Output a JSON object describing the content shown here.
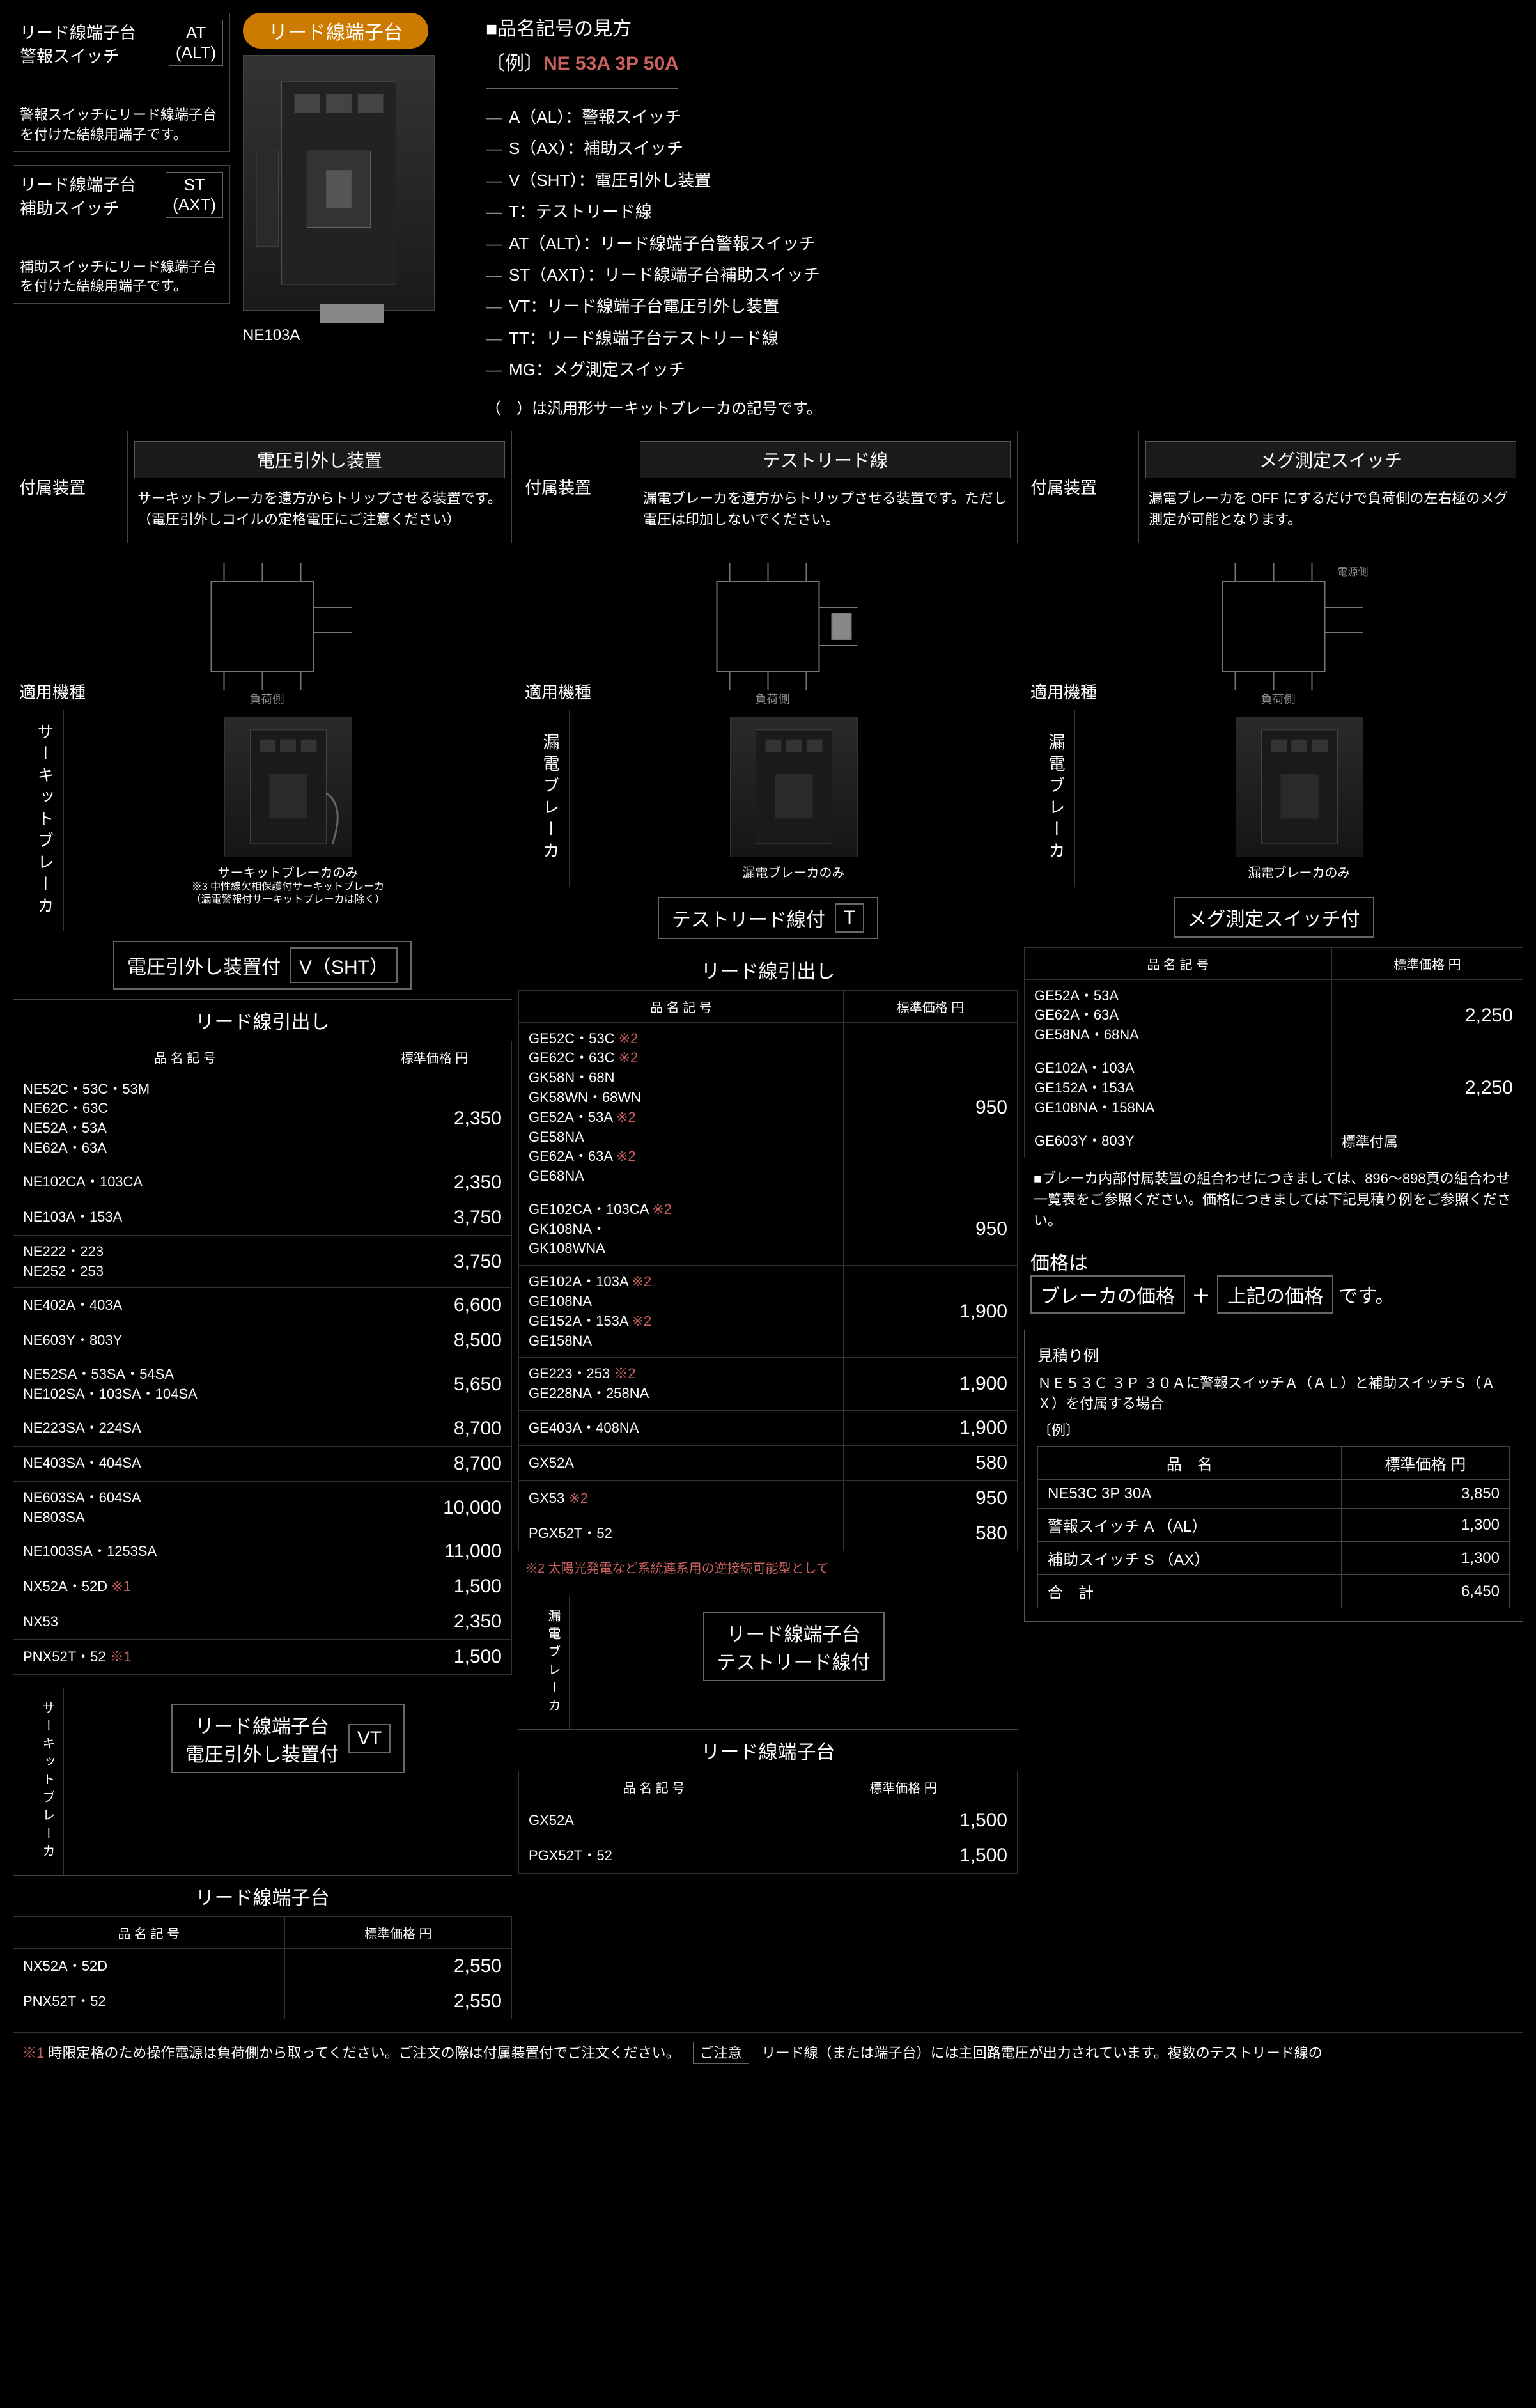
{
  "top": {
    "box1": {
      "title": "リード線端子台\n警報スイッチ",
      "tag": "AT\n(ALT)",
      "desc": "警報スイッチにリード線端子台を付けた結線用端子です。"
    },
    "box2": {
      "title": "リード線端子台\n補助スイッチ",
      "tag": "ST\n(AXT)",
      "desc": "補助スイッチにリード線端子台を付けた結線用端子です。"
    },
    "pill": "リード線端子台",
    "photo_label": "NE103A",
    "spec_title": "■品名記号の見方",
    "spec_example_prefix": "〔例〕",
    "spec_example": "NE 53A 3P 50A",
    "legend": [
      "A（AL）：警報スイッチ",
      "S（AX）：補助スイッチ",
      "V（SHT）：電圧引外し装置",
      "T：テストリード線",
      "AT（ALT）：リード線端子台警報スイッチ",
      "ST（AXT）：リード線端子台補助スイッチ",
      "VT：リード線端子台電圧引外し装置",
      "TT：リード線端子台テストリード線",
      "MG：メグ測定スイッチ"
    ],
    "legend_note": "（　）は汎用形サーキットブレーカの記号です。"
  },
  "cols": [
    {
      "attach_label": "付属装置",
      "title": "電圧引外し装置",
      "desc": "サーキットブレーカを遠方からトリップさせる装置です。\n（電圧引外しコイルの定格電圧にご注意ください）",
      "applied": "適用機種",
      "vert": "サーキットブレーカ",
      "caption": "サーキットブレーカのみ",
      "cap_note": "※3 中性線欠相保護付サーキットブレーカ\n（漏電警報付サーキットブレーカは除く）",
      "device_label": "電圧引外し装置付",
      "device_code": "V（SHT）",
      "table_title": "リード線引出し",
      "th_model": "品 名 記 号",
      "th_price": "標準価格 円",
      "rows": [
        {
          "m": "NE52C・53C・53M\nNE62C・63C\nNE52A・53A\nNE62A・63A",
          "p": "2,350"
        },
        {
          "m": "NE102CA・103CA",
          "p": "2,350"
        },
        {
          "m": "NE103A・153A",
          "p": "3,750"
        },
        {
          "m": "NE222・223\nNE252・253",
          "p": "3,750"
        },
        {
          "m": "NE402A・403A",
          "p": "6,600"
        },
        {
          "m": "NE603Y・803Y",
          "p": "8,500"
        },
        {
          "m": "NE52SA・53SA・54SA\nNE102SA・103SA・104SA",
          "p": "5,650"
        },
        {
          "m": "NE223SA・224SA",
          "p": "8,700"
        },
        {
          "m": "NE403SA・404SA",
          "p": "8,700"
        },
        {
          "m": "NE603SA・604SA\nNE803SA",
          "p": "10,000"
        },
        {
          "m": "NE1003SA・1253SA",
          "p": "11,000"
        },
        {
          "m": "NX52A・52D ※1",
          "p": "1,500",
          "red": true
        },
        {
          "m": "NX53",
          "p": "2,350"
        },
        {
          "m": "PNX52T・52 ※1",
          "p": "1,500",
          "red": true
        }
      ],
      "sub_vert": "サーキットブレーカ",
      "sub_device_label": "リード線端子台\n電圧引外し装置付",
      "sub_device_code": "VT",
      "sub_table_title": "リード線端子台",
      "sub_rows": [
        {
          "m": "NX52A・52D",
          "p": "2,550"
        },
        {
          "m": "PNX52T・52",
          "p": "2,550"
        }
      ]
    },
    {
      "attach_label": "付属装置",
      "title": "テストリード線",
      "desc": "漏電ブレーカを遠方からトリップさせる装置です。ただし電圧は印加しないでください。",
      "applied": "適用機種",
      "vert": "漏電ブレーカ",
      "caption": "漏電ブレーカのみ",
      "device_label": "テストリード線付",
      "device_code": "T",
      "table_title": "リード線引出し",
      "th_model": "品 名 記 号",
      "th_price": "標準価格 円",
      "rows": [
        {
          "m": "GE52C・53C ※2\nGE62C・63C ※2\nGK58N・68N\nGK58WN・68WN\nGE52A・53A ※2\nGE58NA\nGE62A・63A ※2\nGE68NA",
          "p": "950",
          "red": true
        },
        {
          "m": "GE102CA・103CA ※2\nGK108NA・\nGK108WNA",
          "p": "950",
          "red": true
        },
        {
          "m": "GE102A・103A ※2\nGE108NA\nGE152A・153A ※2\nGE158NA",
          "p": "1,900",
          "red": true
        },
        {
          "m": "GE223・253 ※2\nGE228NA・258NA",
          "p": "1,900",
          "red": true
        },
        {
          "m": "GE403A・408NA",
          "p": "1,900"
        },
        {
          "m": "GX52A",
          "p": "580"
        },
        {
          "m": "GX53 ※2",
          "p": "950",
          "red": true
        },
        {
          "m": "PGX52T・52",
          "p": "580"
        }
      ],
      "foot2": "※2 太陽光発電など系統連系用の逆接続可能型として",
      "sub_vert": "漏電ブレーカ",
      "sub_device_label": "リード線端子台\nテストリード線付",
      "sub_table_title": "リード線端子台",
      "sub_rows": [
        {
          "m": "GX52A",
          "p": "1,500"
        },
        {
          "m": "PGX52T・52",
          "p": "1,500"
        }
      ]
    },
    {
      "attach_label": "付属装置",
      "title": "メグ測定スイッチ",
      "desc": "漏電ブレーカを OFF にするだけで負荷側の左右極のメグ測定が可能となります。",
      "applied": "適用機種",
      "vert": "漏電ブレーカ",
      "caption": "漏電ブレーカのみ",
      "device_label": "メグ測定スイッチ付",
      "table_title": "",
      "th_model": "品 名 記 号",
      "th_price": "標準価格 円",
      "rows": [
        {
          "m": "GE52A・53A\nGE62A・63A\nGE58NA・68NA",
          "p": "2,250"
        },
        {
          "m": "GE102A・103A\nGE152A・153A\nGE108NA・158NA",
          "p": "2,250"
        },
        {
          "m": "GE603Y・803Y",
          "p": "標準付属",
          "text": true
        }
      ],
      "combo_note": "■ブレーカ内部付属装置の組合わせにつきましては、896〜898頁の組合わせ一覧表をご参照ください。価格につきましては下記見積り例をご参照ください。",
      "price_label": "価格は",
      "formula_a": "ブレーカの価格",
      "formula_plus": "＋",
      "formula_b": "上記の価格",
      "formula_suffix": "です。",
      "estimate_title": "見積り例",
      "estimate_desc": "ＮＥ５３Ｃ ３Ｐ ３０Ａに警報スイッチＡ（ＡＬ）と補助スイッチＳ（ＡＸ）を付属する場合",
      "estimate_example_label": "〔例〕",
      "est_th1": "品　名",
      "est_th2": "標準価格 円",
      "est_rows": [
        {
          "n": "NE53C 3P 30A",
          "p": "3,850"
        },
        {
          "n": "警報スイッチ A （AL）",
          "p": "1,300"
        },
        {
          "n": "補助スイッチ S （AX）",
          "p": "1,300"
        },
        {
          "n": "合　計",
          "p": "6,450"
        }
      ]
    }
  ],
  "footnote": {
    "f1_mark": "※1",
    "f1": "時限定格のため操作電源は負荷側から取ってください。ご注文の際は付属装置付でご注文ください。",
    "caution": "ご注意",
    "caution_text": "リード線（または端子台）には主回路電圧が出力されています。複数のテストリード線の"
  },
  "colors": {
    "accent": "#c9625f",
    "pill": "#cc7a00",
    "border": "#444"
  }
}
